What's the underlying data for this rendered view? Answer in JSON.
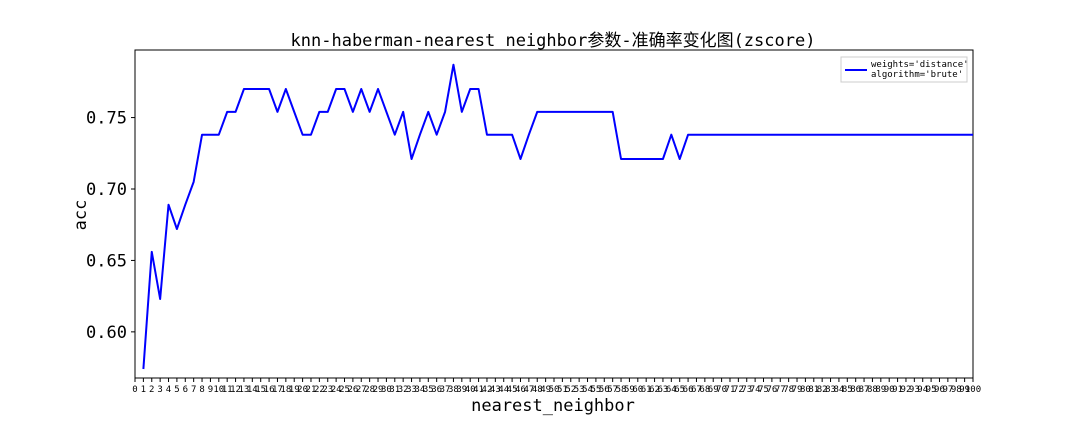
{
  "chart_data": {
    "type": "line",
    "title": "knn-haberman-nearest_neighbor参数-准确率变化图(zscore)",
    "xlabel": "nearest_neighbor",
    "ylabel": "acc",
    "xlim": [
      0,
      100
    ],
    "ylim": [
      0.5677,
      0.7973
    ],
    "yticks": [
      0.6,
      0.65,
      0.7,
      0.75
    ],
    "ytick_labels": [
      "0.60",
      "0.65",
      "0.70",
      "0.75"
    ],
    "xticks": [
      0,
      1,
      2,
      3,
      4,
      5,
      6,
      7,
      8,
      9,
      10,
      11,
      12,
      13,
      14,
      15,
      16,
      17,
      18,
      19,
      20,
      21,
      22,
      23,
      24,
      25,
      26,
      27,
      28,
      29,
      30,
      31,
      32,
      33,
      34,
      35,
      36,
      37,
      38,
      39,
      40,
      41,
      42,
      43,
      44,
      45,
      46,
      47,
      48,
      49,
      50,
      51,
      52,
      53,
      54,
      55,
      56,
      57,
      58,
      59,
      60,
      61,
      62,
      63,
      64,
      65,
      66,
      67,
      68,
      69,
      70,
      71,
      72,
      73,
      74,
      75,
      76,
      77,
      78,
      79,
      80,
      81,
      82,
      83,
      84,
      85,
      86,
      87,
      88,
      89,
      90,
      91,
      92,
      93,
      94,
      95,
      96,
      97,
      98,
      99,
      100
    ],
    "legend": {
      "position": "top-right",
      "label_lines": [
        "weights='distance'",
        "algorithm='brute'"
      ]
    },
    "grid": false,
    "series": [
      {
        "color": "#0000ff",
        "x": [
          1,
          2,
          3,
          4,
          5,
          6,
          7,
          8,
          9,
          10,
          11,
          12,
          13,
          14,
          15,
          16,
          17,
          18,
          19,
          20,
          21,
          22,
          23,
          24,
          25,
          26,
          27,
          28,
          29,
          30,
          31,
          32,
          33,
          34,
          35,
          36,
          37,
          38,
          39,
          40,
          41,
          42,
          43,
          44,
          45,
          46,
          47,
          48,
          49,
          50,
          51,
          52,
          53,
          54,
          55,
          56,
          57,
          58,
          59,
          60,
          61,
          62,
          63,
          64,
          65,
          66,
          67,
          68,
          69,
          70,
          71,
          72,
          73,
          74,
          75,
          76,
          77,
          78,
          79,
          80,
          81,
          82,
          83,
          84,
          85,
          86,
          87,
          88,
          89,
          90,
          91,
          92,
          93,
          94,
          95,
          96,
          97,
          98,
          99,
          100
        ],
        "y": [
          0.574,
          0.656,
          0.623,
          0.689,
          0.672,
          0.689,
          0.705,
          0.738,
          0.738,
          0.738,
          0.754,
          0.754,
          0.77,
          0.77,
          0.77,
          0.77,
          0.754,
          0.77,
          0.754,
          0.738,
          0.738,
          0.754,
          0.754,
          0.77,
          0.77,
          0.754,
          0.77,
          0.754,
          0.77,
          0.754,
          0.738,
          0.754,
          0.721,
          0.738,
          0.754,
          0.738,
          0.754,
          0.787,
          0.754,
          0.77,
          0.77,
          0.738,
          0.738,
          0.738,
          0.738,
          0.721,
          0.738,
          0.754,
          0.754,
          0.754,
          0.754,
          0.754,
          0.754,
          0.754,
          0.754,
          0.754,
          0.754,
          0.721,
          0.721,
          0.721,
          0.721,
          0.721,
          0.721,
          0.738,
          0.721,
          0.738,
          0.738,
          0.738,
          0.738,
          0.738,
          0.738,
          0.738,
          0.738,
          0.738,
          0.738,
          0.738,
          0.738,
          0.738,
          0.738,
          0.738,
          0.738,
          0.738,
          0.738,
          0.738,
          0.738,
          0.738,
          0.738,
          0.738,
          0.738,
          0.738,
          0.738,
          0.738,
          0.738,
          0.738,
          0.738,
          0.738,
          0.738,
          0.738,
          0.738,
          0.738
        ]
      }
    ]
  }
}
